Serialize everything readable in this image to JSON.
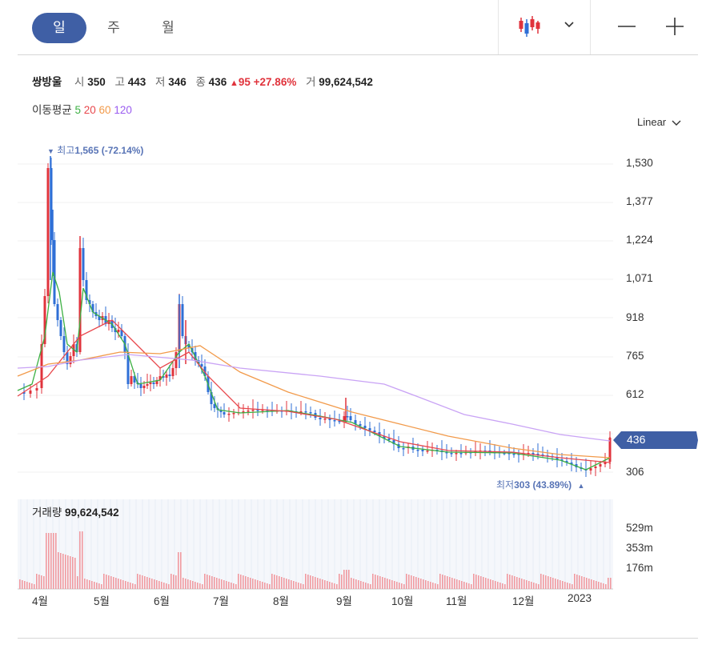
{
  "tabs": [
    {
      "label": "일",
      "active": true
    },
    {
      "label": "주",
      "active": false
    },
    {
      "label": "월",
      "active": false
    }
  ],
  "controls": {
    "chart_type_icon": "candlestick-icon",
    "dropdown_icon": "chevron-down-icon",
    "minimize_icon": "minus-icon",
    "add_icon": "plus-icon"
  },
  "stock": {
    "name": "쌍방울",
    "open_label": "시",
    "open": "350",
    "high_label": "고",
    "high": "443",
    "low_label": "저",
    "low": "346",
    "close_label": "종",
    "close": "436",
    "change_arrow": "▲",
    "change": "95",
    "change_pct": "+27.86%",
    "volume_label": "거",
    "volume": "99,624,542"
  },
  "moving_average": {
    "label": "이동평균",
    "periods": [
      {
        "value": "5",
        "color": "#3cb043"
      },
      {
        "value": "20",
        "color": "#e8474c"
      },
      {
        "value": "60",
        "color": "#f29a4a"
      },
      {
        "value": "120",
        "color": "#9a5cf0"
      }
    ]
  },
  "scale": {
    "label": "Linear"
  },
  "colors": {
    "accent": "#3f5fa5",
    "up": "#e0333c",
    "down": "#2f6fd6",
    "annotation": "#5874b6"
  },
  "annotations": {
    "high_marker": "▼",
    "high_label": "최고",
    "high_value": "1,565 (-72.14%)",
    "low_marker": "▲",
    "low_label": "최저",
    "low_value": "303 (43.89%)"
  },
  "current_price_badge": "436",
  "volume_panel": {
    "label": "거래량",
    "value": "99,624,542"
  },
  "chart_data": {
    "type": "candlestick",
    "y_ticks": [
      "1,530",
      "1,377",
      "1,224",
      "1,071",
      "918",
      "765",
      "612",
      "306"
    ],
    "ylim": [
      260,
      1600
    ],
    "volume_ticks": [
      "529m",
      "353m",
      "176m"
    ],
    "x_ticks": [
      "4월",
      "5월",
      "6월",
      "7월",
      "8월",
      "9월",
      "10월",
      "11월",
      "12월",
      "2023"
    ],
    "last_candle": {
      "open": 350,
      "high": 443,
      "low": 346,
      "close": 436,
      "volume": 99624542
    }
  }
}
